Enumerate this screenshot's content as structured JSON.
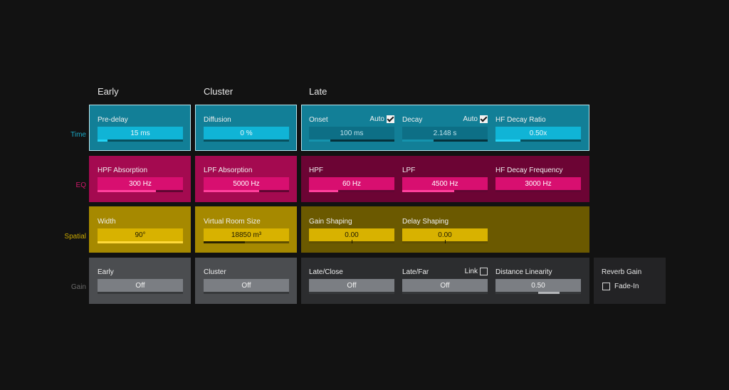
{
  "columns": {
    "early": "Early",
    "cluster": "Cluster",
    "late": "Late"
  },
  "rows": {
    "time": "Time",
    "eq": "EQ",
    "spatial": "Spatial",
    "gain": "Gain"
  },
  "colors": {
    "time": "#127f97",
    "eq": "#a40a50",
    "spatial": "#a68900",
    "gain": "#4b4d50",
    "time_label": "#1aa9c6",
    "eq_label": "#d0186a",
    "spatial_label": "#c9a800",
    "gain_label": "#6a6a6a"
  },
  "time": {
    "predelay": {
      "label": "Pre-delay",
      "value": "15 ms",
      "fill": 0.12
    },
    "diffusion": {
      "label": "Diffusion",
      "value": "0 %",
      "fill": 0.0
    },
    "onset": {
      "label": "Onset",
      "value": "100 ms",
      "fill": 0.25,
      "auto_label": "Auto",
      "auto": true
    },
    "decay": {
      "label": "Decay",
      "value": "2.148 s",
      "fill": 0.37,
      "auto_label": "Auto",
      "auto": true
    },
    "hf_decay_ratio": {
      "label": "HF Decay Ratio",
      "value": "0.50x",
      "fill": 0.29
    }
  },
  "eq": {
    "hpf_absorption": {
      "label": "HPF Absorption",
      "value": "300 Hz",
      "fill": 0.68
    },
    "lpf_absorption": {
      "label": "LPF Absorption",
      "value": "5000 Hz",
      "fill": 0.65
    },
    "hpf": {
      "label": "HPF",
      "value": "60 Hz",
      "fill": 0.34
    },
    "lpf": {
      "label": "LPF",
      "value": "4500 Hz",
      "fill": 0.61
    },
    "hf_decay_frequency": {
      "label": "HF Decay Frequency",
      "value": "3000 Hz",
      "fill": 0.0
    }
  },
  "spatial": {
    "width": {
      "label": "Width",
      "value": "90°",
      "fill": 1.0
    },
    "virtual_room_size": {
      "label": "Virtual Room Size",
      "value": "18850 m³",
      "fill": 0.48
    },
    "gain_shaping": {
      "label": "Gain Shaping",
      "value": "0.00",
      "center": 0.5
    },
    "delay_shaping": {
      "label": "Delay Shaping",
      "value": "0.00",
      "center": 0.5
    }
  },
  "gain": {
    "early": {
      "label": "Early",
      "value": "Off"
    },
    "cluster": {
      "label": "Cluster",
      "value": "Off"
    },
    "late_close": {
      "label": "Late/Close",
      "value": "Off"
    },
    "late_far": {
      "label": "Late/Far",
      "value": "Off",
      "link_label": "Link",
      "link": false
    },
    "distance_linearity": {
      "label": "Distance Linearity",
      "value": "0.50",
      "center": 0.5,
      "fill_from": 0.5,
      "fill_to": 0.75
    }
  },
  "reverb_gain": {
    "title": "Reverb Gain",
    "fadein_label": "Fade-In",
    "fadein": false
  }
}
